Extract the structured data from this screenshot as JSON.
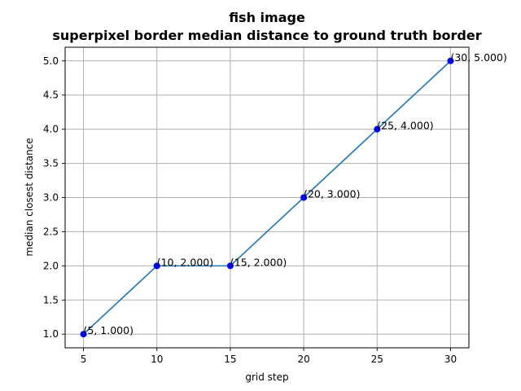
{
  "chart_data": {
    "type": "line",
    "title_line1": "fish image",
    "title_line2": "superpixel border median distance to ground truth border",
    "xlabel": "grid step",
    "ylabel": "median closest distance",
    "x": [
      5,
      10,
      15,
      20,
      25,
      30
    ],
    "y": [
      1.0,
      2.0,
      2.0,
      3.0,
      4.0,
      5.0
    ],
    "point_labels": [
      "(5, 1.000)",
      "(10, 2.000)",
      "(15, 2.000)",
      "(20, 3.000)",
      "(25, 4.000)",
      "(30, 5.000)"
    ],
    "xlim": [
      3.75,
      31.25
    ],
    "ylim": [
      0.8,
      5.2
    ],
    "xticks": [
      5,
      10,
      15,
      20,
      25,
      30
    ],
    "xtick_labels": [
      "5",
      "10",
      "15",
      "20",
      "25",
      "30"
    ],
    "yticks": [
      1.0,
      1.5,
      2.0,
      2.5,
      3.0,
      3.5,
      4.0,
      4.5,
      5.0
    ],
    "ytick_labels": [
      "1.0",
      "1.5",
      "2.0",
      "2.5",
      "3.0",
      "3.5",
      "4.0",
      "4.5",
      "5.0"
    ],
    "grid": true,
    "line_color": "#1f77b4",
    "marker_color": "#0000ff"
  }
}
